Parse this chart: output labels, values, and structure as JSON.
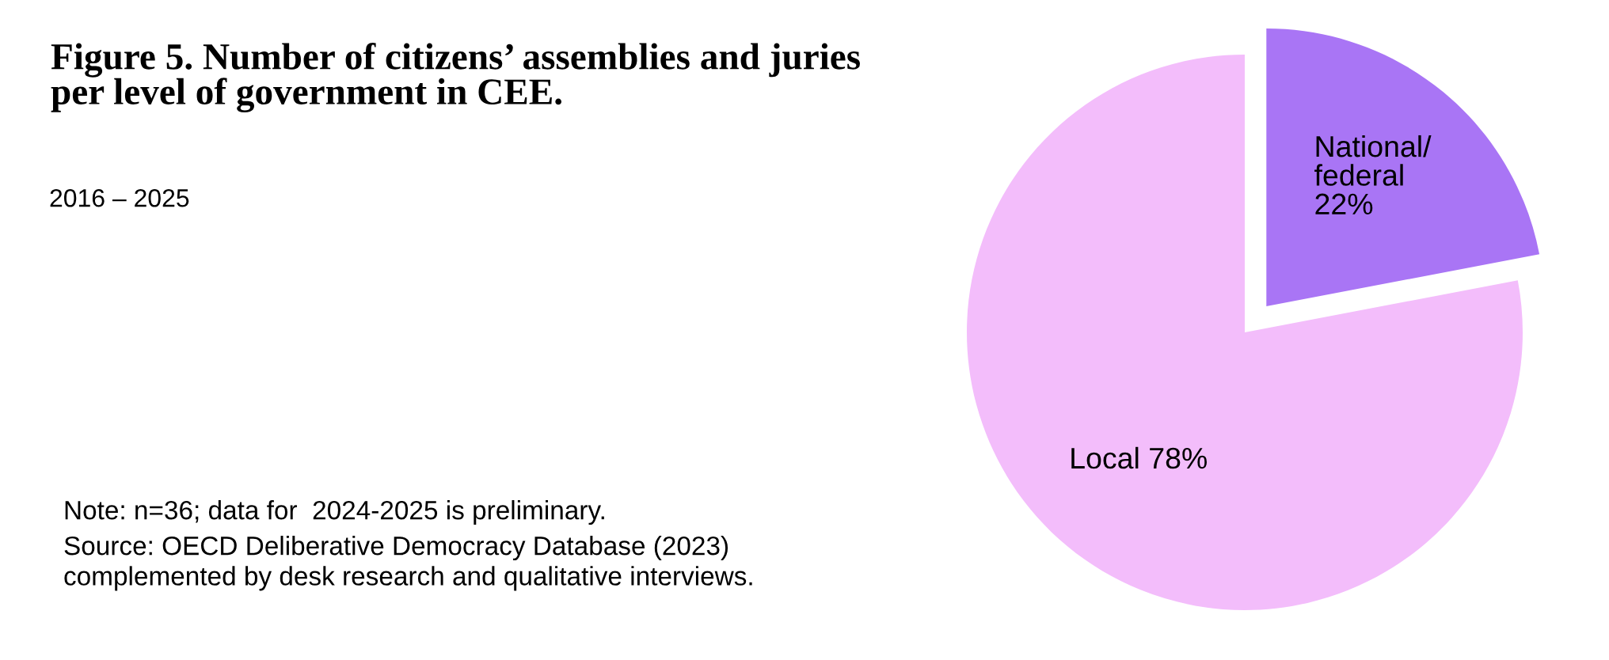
{
  "chart_data": {
    "type": "pie",
    "title": "Figure 5. Number of citizens’ assemblies and juries\nper level of government in CEE.",
    "subtitle": "2016 – 2025",
    "annotations": [
      "Note: n=36; data for  2024-2025 is preliminary.",
      "Source: OECD Deliberative Democracy Database (2023)\ncomplemented by desk research and qualitative interviews."
    ],
    "categories": [
      "National/\nfederal",
      "Local"
    ],
    "values": [
      22,
      78
    ],
    "value_labels": [
      "22%",
      "78%"
    ],
    "colors": [
      "#a975f5",
      "#f3bdfb"
    ]
  }
}
